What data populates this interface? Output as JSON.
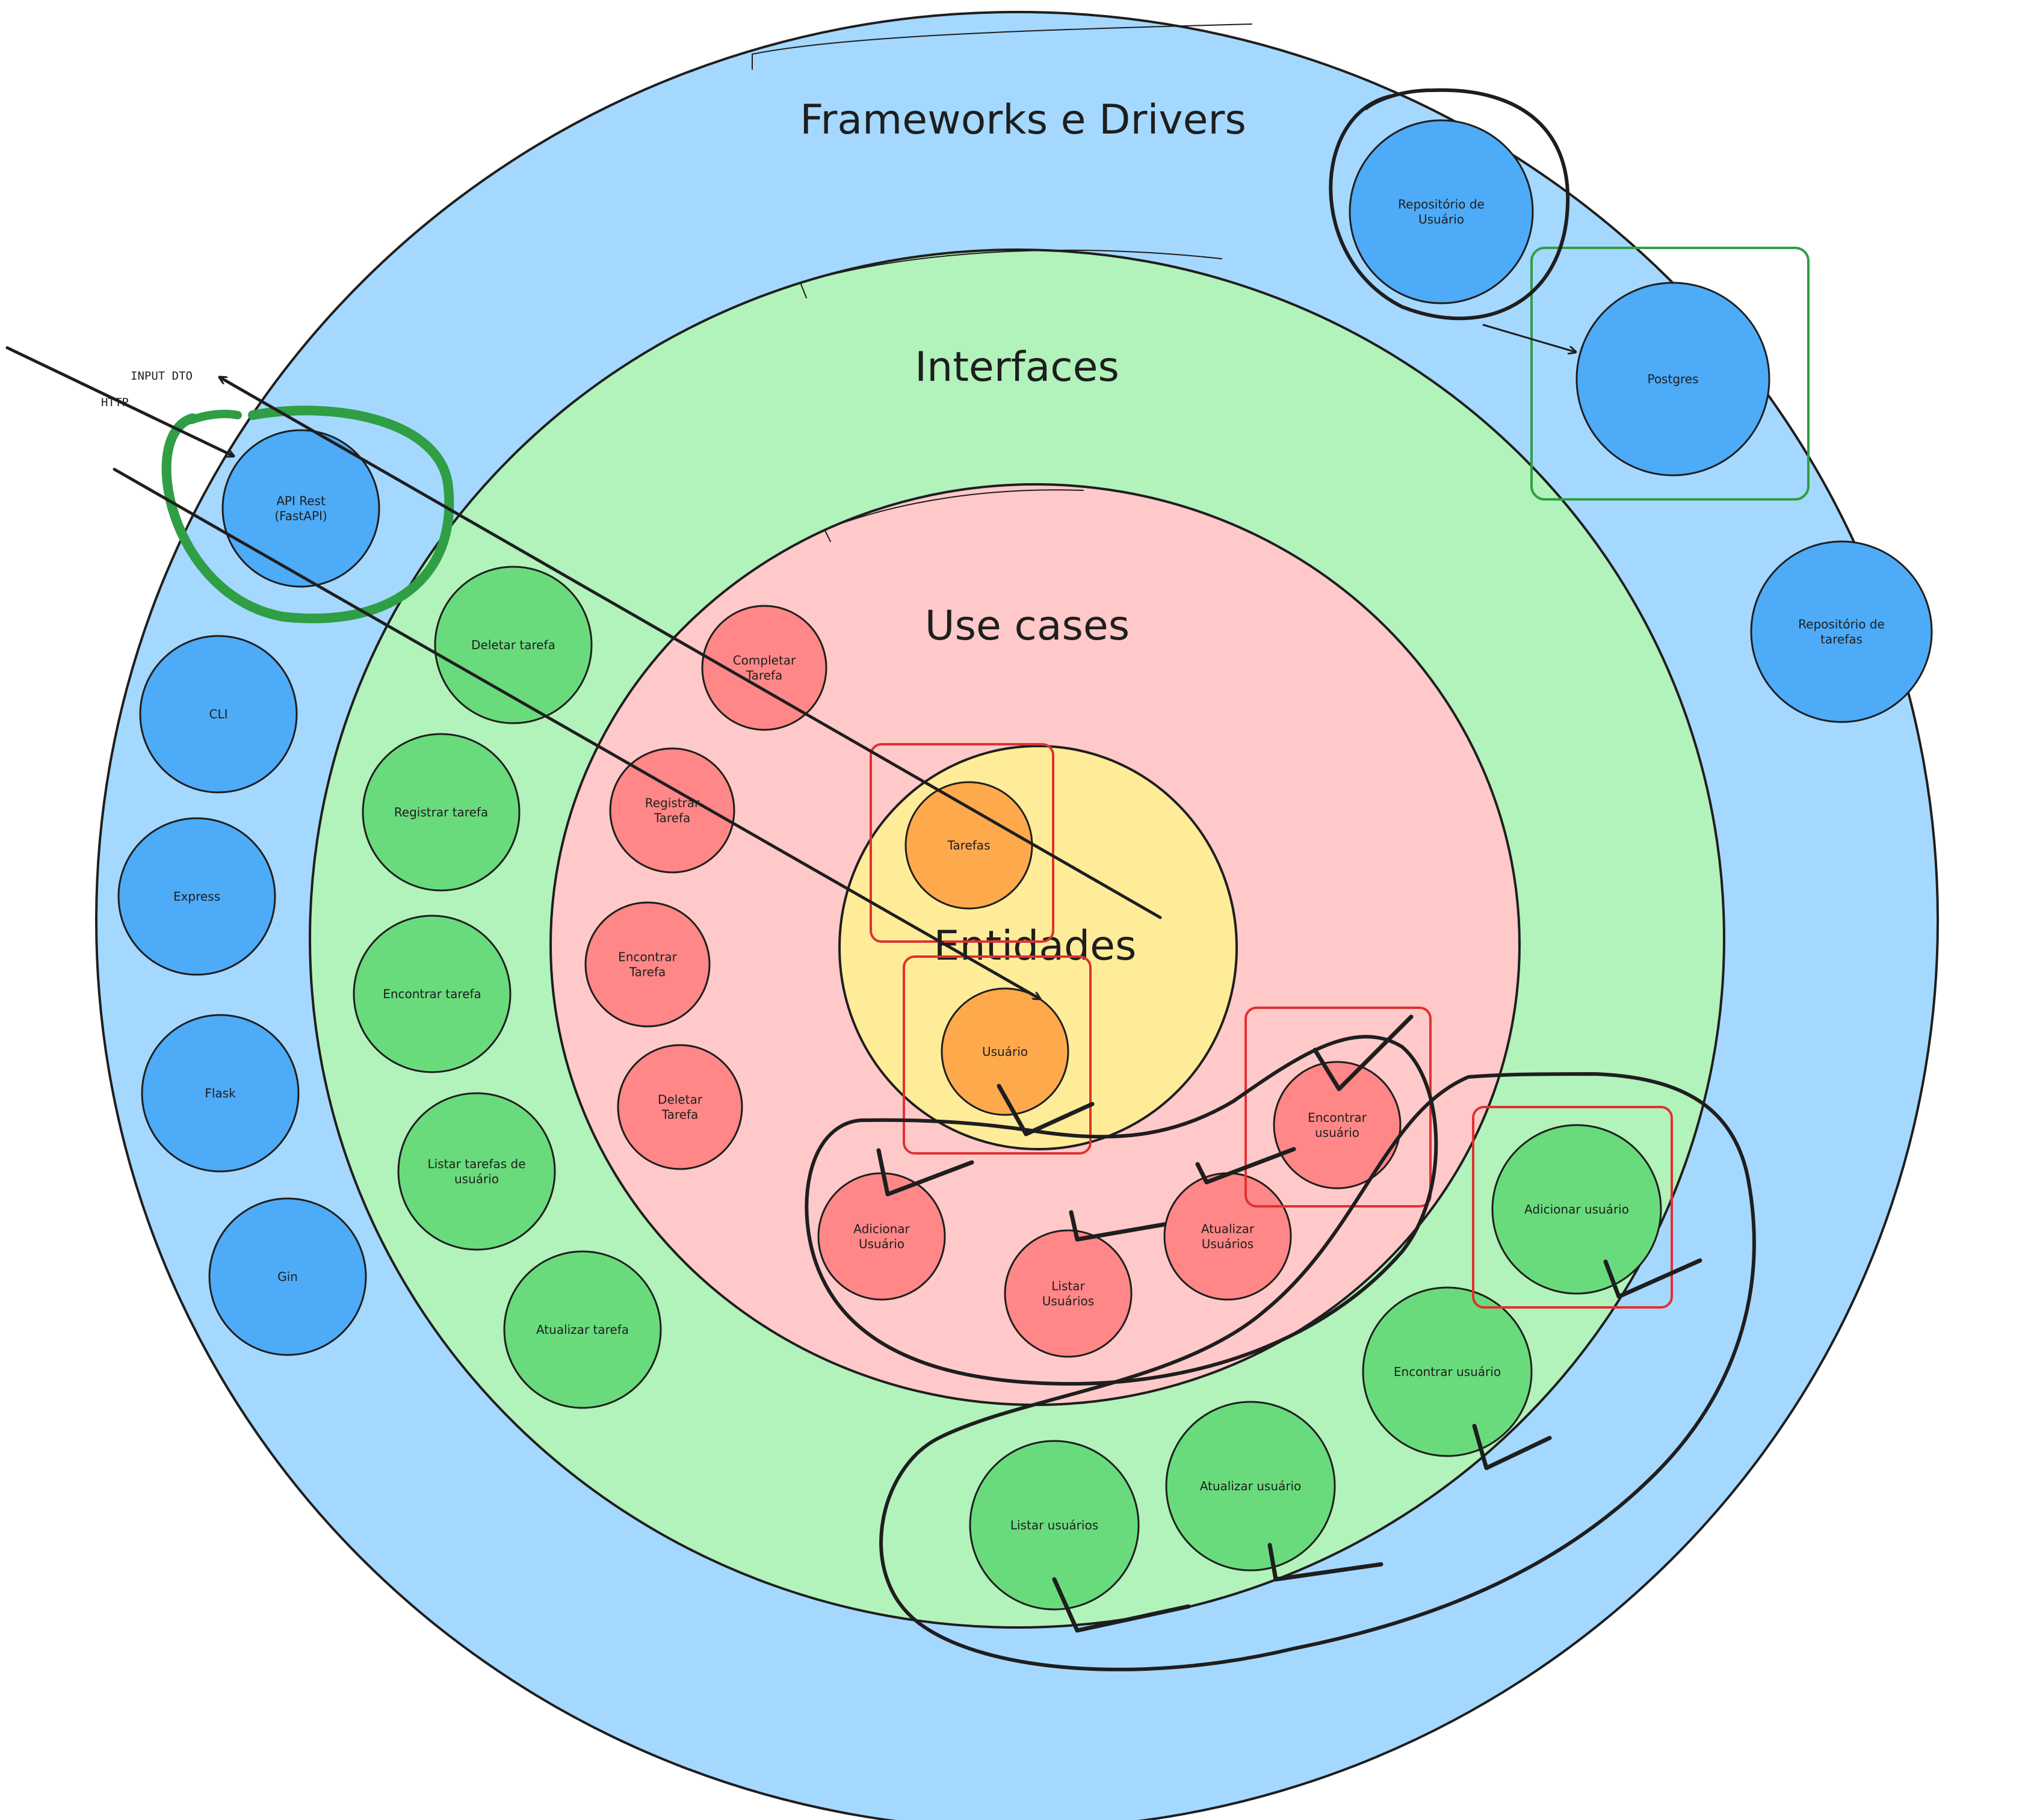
{
  "colors": {
    "frameworks_fill": "#a5d8ff",
    "interfaces_fill": "#b2f2bb",
    "usecases_fill": "#ffc9c9",
    "entities_fill": "#ffec99",
    "framework_node": "#4dabf7",
    "interface_node": "#69db7c",
    "usecase_node": "#ff8787",
    "entity_node": "#ffa94d",
    "highlight_red": "#e03131",
    "highlight_green": "#2f9e44",
    "ink": "#1e1e1e"
  },
  "layers": {
    "frameworks": "Frameworks e Drivers",
    "interfaces": "Interfaces",
    "usecases": "Use cases",
    "entities": "Entidades"
  },
  "arrows": {
    "input_dto": "INPUT DTO",
    "http": "HTTP"
  },
  "frameworks_nodes": {
    "api_rest": "API Rest\n(FastAPI)",
    "cli": "CLI",
    "express": "Express",
    "flask": "Flask",
    "gin": "Gin",
    "repo_usuario": "Repositório de\nUsuário",
    "postgres": "Postgres",
    "repo_tarefas": "Repositório de\ntarefas"
  },
  "interfaces_nodes": {
    "deletar_tarefa": "Deletar tarefa",
    "registrar_tarefa": "Registrar tarefa",
    "encontrar_tarefa": "Encontrar tarefa",
    "listar_tarefas_usuario": "Listar tarefas de\nusuário",
    "atualizar_tarefa": "Atualizar tarefa",
    "adicionar_usuario": "Adicionar usuário",
    "encontrar_usuario": "Encontrar usuário",
    "atualizar_usuario": "Atualizar usuário",
    "listar_usuarios": "Listar usuários"
  },
  "usecases_nodes": {
    "completar_tarefa": "Completar\nTarefa",
    "registrar_tarefa": "Registrar\nTarefa",
    "encontrar_tarefa": "Encontrar\nTarefa",
    "deletar_tarefa": "Deletar\nTarefa",
    "adicionar_usuario": "Adicionar\nUsuário",
    "listar_usuarios": "Listar\nUsuários",
    "atualizar_usuarios": "Atualizar\nUsuários",
    "encontrar_usuario": "Encontrar\nusuário"
  },
  "entities_nodes": {
    "tarefas": "Tarefas",
    "usuario": "Usuário"
  }
}
